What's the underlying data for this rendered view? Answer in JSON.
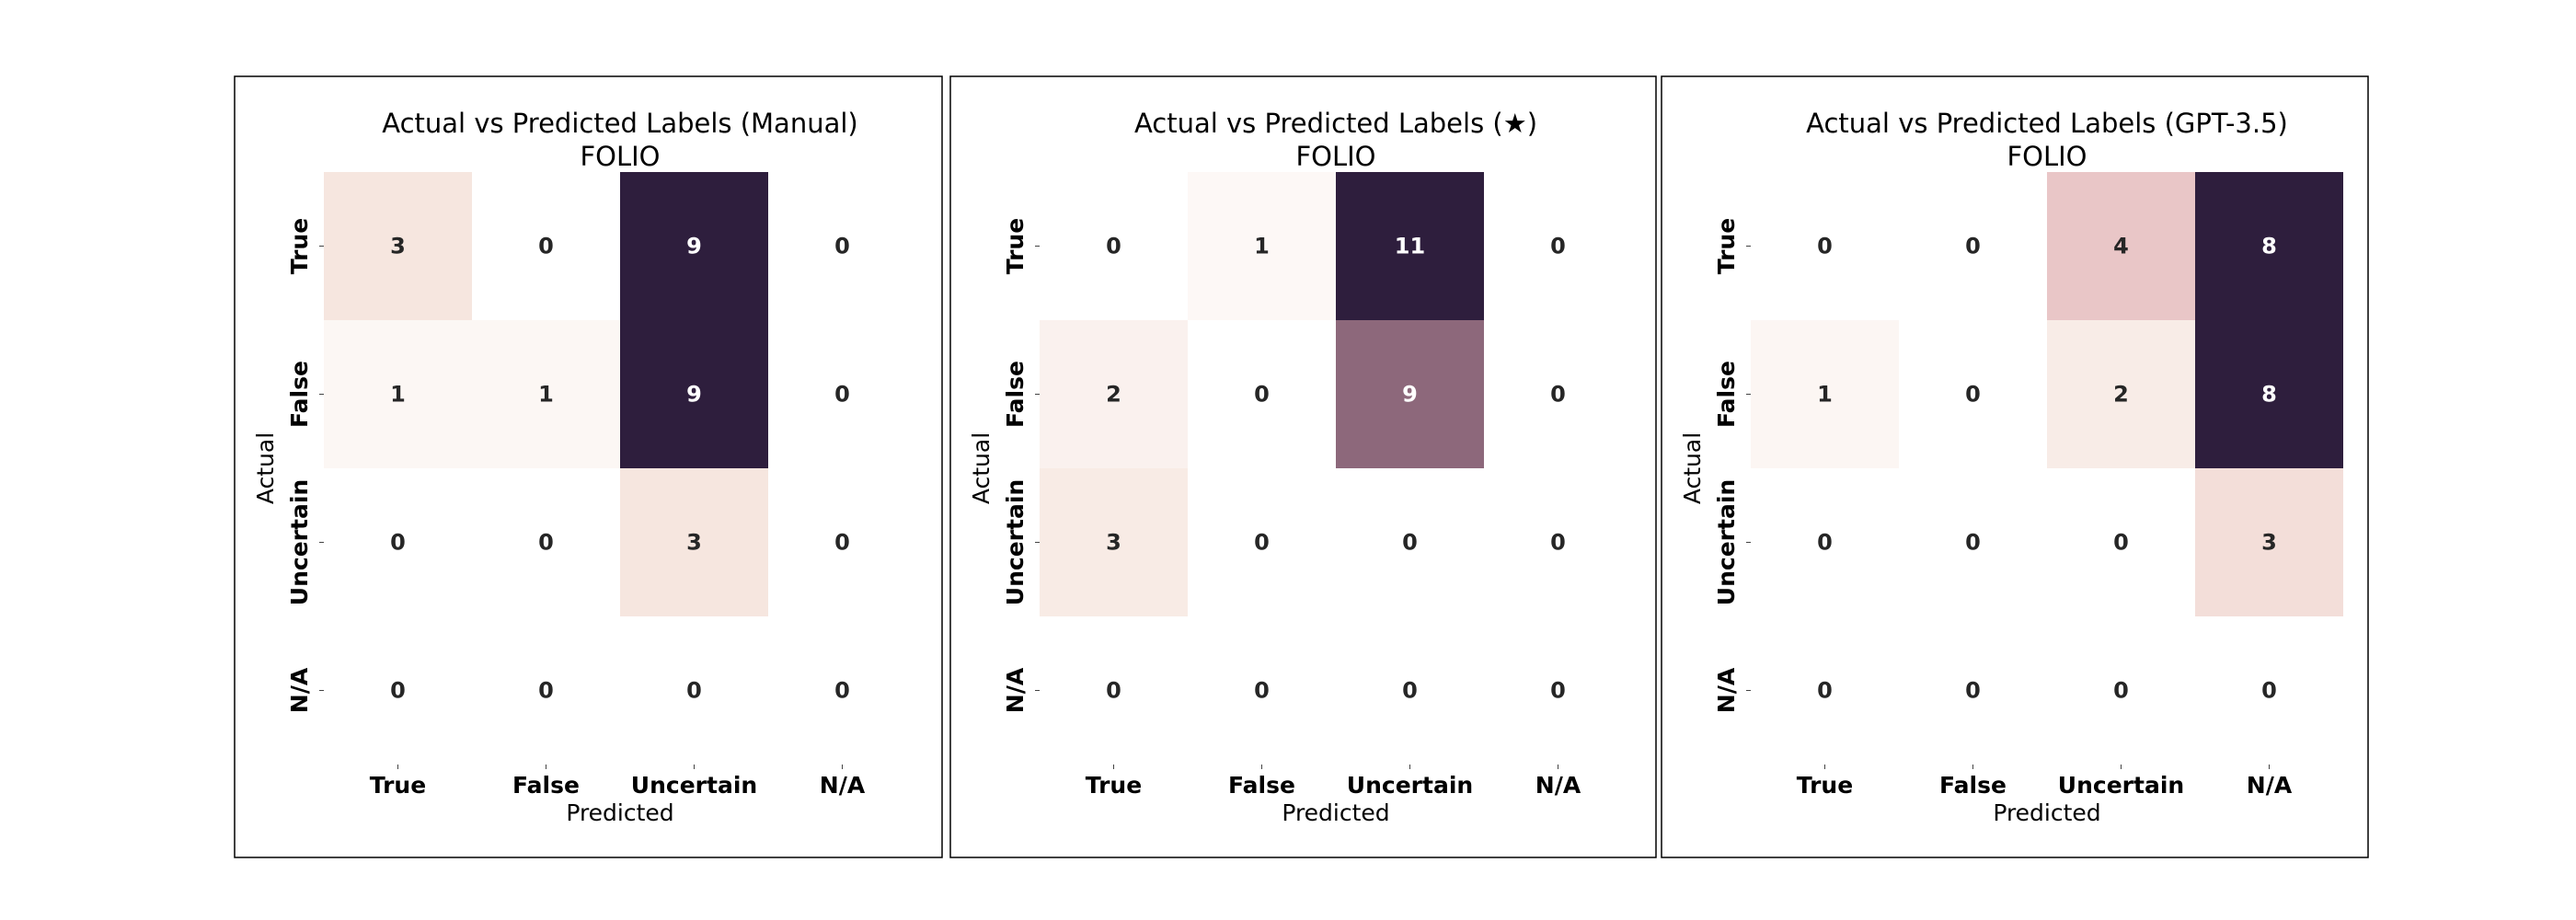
{
  "chart_data": [
    {
      "type": "heatmap",
      "title": "Actual vs Predicted Labels (Manual)",
      "subtitle": "FOLIO",
      "xlabel": "Predicted",
      "ylabel": "Actual",
      "x_categories": [
        "True",
        "False",
        "Uncertain",
        "N/A"
      ],
      "y_categories": [
        "True",
        "False",
        "Uncertain",
        "N/A"
      ],
      "values": [
        [
          3,
          0,
          9,
          0
        ],
        [
          1,
          1,
          9,
          0
        ],
        [
          0,
          0,
          3,
          0
        ],
        [
          0,
          0,
          0,
          0
        ]
      ],
      "colorscale": [
        "#ffffff",
        "#f6e6df",
        "#dca6af",
        "#2e1e3d"
      ]
    },
    {
      "type": "heatmap",
      "title": "Actual vs Predicted Labels (★)",
      "subtitle": "FOLIO",
      "xlabel": "Predicted",
      "ylabel": "Actual",
      "x_categories": [
        "True",
        "False",
        "Uncertain",
        "N/A"
      ],
      "y_categories": [
        "True",
        "False",
        "Uncertain",
        "N/A"
      ],
      "values": [
        [
          0,
          1,
          11,
          0
        ],
        [
          2,
          0,
          9,
          0
        ],
        [
          3,
          0,
          0,
          0
        ],
        [
          0,
          0,
          0,
          0
        ]
      ],
      "colorscale": [
        "#ffffff",
        "#f6e6df",
        "#dca6af",
        "#2e1e3d"
      ]
    },
    {
      "type": "heatmap",
      "title": "Actual vs Predicted Labels (GPT-3.5)",
      "subtitle": "FOLIO",
      "xlabel": "Predicted",
      "ylabel": "Actual",
      "x_categories": [
        "True",
        "False",
        "Uncertain",
        "N/A"
      ],
      "y_categories": [
        "True",
        "False",
        "Uncertain",
        "N/A"
      ],
      "values": [
        [
          0,
          0,
          4,
          8
        ],
        [
          1,
          0,
          2,
          8
        ],
        [
          0,
          0,
          0,
          3
        ],
        [
          0,
          0,
          0,
          0
        ]
      ],
      "colorscale": [
        "#ffffff",
        "#f6e6df",
        "#dca6af",
        "#2e1e3d"
      ]
    }
  ]
}
